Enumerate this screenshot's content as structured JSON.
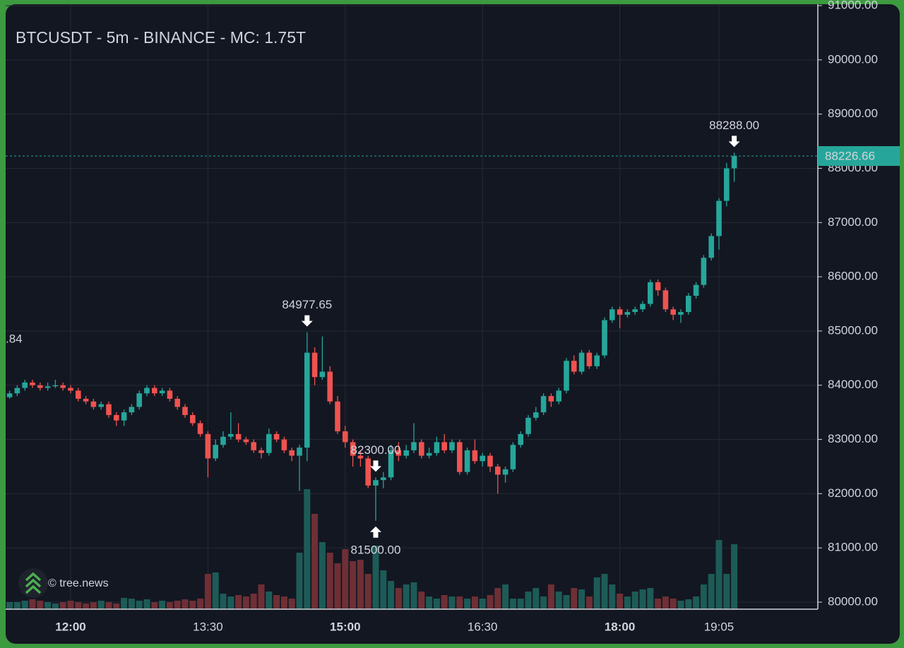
{
  "chart_data": {
    "type": "candlestick",
    "title": "BTCUSDT - 5m - BINANCE - MC: 1.75T",
    "watermark": "© tree.news",
    "side_label": ".84",
    "categories": [
      null,
      null,
      null,
      null,
      null,
      null,
      null,
      null,
      "12:00",
      null,
      null,
      null,
      null,
      null,
      null,
      null,
      null,
      null,
      null,
      null,
      null,
      null,
      null,
      null,
      null,
      null,
      "13:30",
      null,
      null,
      null,
      null,
      null,
      null,
      null,
      null,
      null,
      null,
      null,
      null,
      null,
      null,
      null,
      null,
      null,
      "15:00",
      null,
      null,
      null,
      null,
      null,
      null,
      null,
      null,
      null,
      null,
      null,
      null,
      null,
      null,
      null,
      null,
      null,
      "16:30",
      null,
      null,
      null,
      null,
      null,
      null,
      null,
      null,
      null,
      null,
      null,
      null,
      null,
      null,
      null,
      null,
      null,
      "18:00",
      null,
      null,
      null,
      null,
      null,
      null,
      null,
      null,
      null,
      null,
      null,
      null,
      "19:05",
      null,
      null
    ],
    "ohlc": [
      [
        83780,
        83900,
        83750,
        83850
      ],
      [
        83850,
        84000,
        83800,
        83950
      ],
      [
        83950,
        84100,
        83900,
        84050
      ],
      [
        84050,
        84100,
        83950,
        84000
      ],
      [
        84000,
        84050,
        83900,
        83950
      ],
      [
        83950,
        84050,
        83900,
        83980
      ],
      [
        83980,
        84100,
        83950,
        84000
      ],
      [
        84000,
        84050,
        83900,
        83950
      ],
      [
        83950,
        84000,
        83850,
        83900
      ],
      [
        83900,
        83950,
        83700,
        83750
      ],
      [
        83750,
        83800,
        83650,
        83700
      ],
      [
        83700,
        83750,
        83550,
        83600
      ],
      [
        83600,
        83700,
        83550,
        83650
      ],
      [
        83650,
        83700,
        83400,
        83450
      ],
      [
        83450,
        83500,
        83250,
        83350
      ],
      [
        83350,
        83550,
        83250,
        83500
      ],
      [
        83500,
        83650,
        83450,
        83600
      ],
      [
        83600,
        83900,
        83550,
        83850
      ],
      [
        83850,
        84000,
        83800,
        83950
      ],
      [
        83950,
        84000,
        83800,
        83850
      ],
      [
        83850,
        83950,
        83800,
        83900
      ],
      [
        83900,
        83950,
        83700,
        83750
      ],
      [
        83750,
        83800,
        83550,
        83600
      ],
      [
        83600,
        83650,
        83400,
        83450
      ],
      [
        83450,
        83500,
        83250,
        83300
      ],
      [
        83300,
        83350,
        83050,
        83100
      ],
      [
        83100,
        83150,
        82300,
        82650
      ],
      [
        82650,
        83000,
        82600,
        82900
      ],
      [
        82900,
        83150,
        82850,
        83050
      ],
      [
        83050,
        83500,
        83000,
        83100
      ],
      [
        83100,
        83300,
        82950,
        83000
      ],
      [
        83000,
        83050,
        82900,
        82950
      ],
      [
        82950,
        83000,
        82750,
        82800
      ],
      [
        82800,
        82850,
        82650,
        82750
      ],
      [
        82750,
        83200,
        82700,
        83100
      ],
      [
        83100,
        83150,
        82950,
        83000
      ],
      [
        83000,
        83050,
        82750,
        82800
      ],
      [
        82800,
        82850,
        82600,
        82700
      ],
      [
        82700,
        82900,
        82050,
        82850
      ],
      [
        82850,
        84977.65,
        82600,
        84600
      ],
      [
        84600,
        84700,
        84000,
        84150
      ],
      [
        84150,
        84900,
        84100,
        84250
      ],
      [
        84250,
        84350,
        83650,
        83700
      ],
      [
        83700,
        83800,
        83100,
        83150
      ],
      [
        83150,
        83250,
        82850,
        82950
      ],
      [
        82950,
        83000,
        82500,
        82700
      ],
      [
        82700,
        82800,
        82500,
        82650
      ],
      [
        82650,
        82700,
        82100,
        82150
      ],
      [
        82150,
        82300,
        81500,
        82250
      ],
      [
        82250,
        82400,
        82100,
        82300
      ],
      [
        82300,
        82900,
        82250,
        82800
      ],
      [
        82800,
        82950,
        82600,
        82700
      ],
      [
        82700,
        82900,
        82650,
        82800
      ],
      [
        82800,
        83300,
        82750,
        82950
      ],
      [
        82950,
        83000,
        82650,
        82700
      ],
      [
        82700,
        82850,
        82650,
        82750
      ],
      [
        82750,
        83050,
        82700,
        82950
      ],
      [
        82950,
        83100,
        82750,
        82800
      ],
      [
        82800,
        83000,
        82750,
        82950
      ],
      [
        82950,
        83000,
        82350,
        82400
      ],
      [
        82400,
        82850,
        82350,
        82800
      ],
      [
        82800,
        83000,
        82550,
        82600
      ],
      [
        82600,
        82750,
        82500,
        82700
      ],
      [
        82700,
        82750,
        82400,
        82500
      ],
      [
        82500,
        82550,
        82000,
        82350
      ],
      [
        82350,
        82500,
        82200,
        82450
      ],
      [
        82450,
        82950,
        82400,
        82900
      ],
      [
        82900,
        83150,
        82850,
        83100
      ],
      [
        83100,
        83450,
        83050,
        83400
      ],
      [
        83400,
        83600,
        83350,
        83500
      ],
      [
        83500,
        83850,
        83450,
        83800
      ],
      [
        83800,
        83850,
        83600,
        83700
      ],
      [
        83700,
        83950,
        83650,
        83900
      ],
      [
        83900,
        84500,
        83850,
        84450
      ],
      [
        84450,
        84550,
        84200,
        84250
      ],
      [
        84250,
        84650,
        84200,
        84600
      ],
      [
        84600,
        84650,
        84300,
        84350
      ],
      [
        84350,
        84600,
        84300,
        84550
      ],
      [
        84550,
        85250,
        84500,
        85200
      ],
      [
        85200,
        85450,
        85150,
        85400
      ],
      [
        85400,
        85450,
        85050,
        85300
      ],
      [
        85300,
        85400,
        85250,
        85350
      ],
      [
        85350,
        85450,
        85300,
        85400
      ],
      [
        85400,
        85550,
        85350,
        85500
      ],
      [
        85500,
        85950,
        85450,
        85900
      ],
      [
        85900,
        85950,
        85650,
        85750
      ],
      [
        85750,
        85800,
        85350,
        85400
      ],
      [
        85400,
        85450,
        85200,
        85300
      ],
      [
        85300,
        85400,
        85150,
        85350
      ],
      [
        85350,
        85700,
        85300,
        85650
      ],
      [
        85650,
        85900,
        85600,
        85850
      ],
      [
        85850,
        86400,
        85800,
        86350
      ],
      [
        86350,
        86800,
        86300,
        86750
      ],
      [
        86750,
        87450,
        86500,
        87400
      ],
      [
        87400,
        88100,
        87300,
        88000
      ],
      [
        88000,
        88288,
        87750,
        88226.66
      ]
    ],
    "volume": [
      10,
      10,
      12,
      14,
      12,
      10,
      8,
      10,
      12,
      10,
      8,
      10,
      12,
      10,
      8,
      16,
      15,
      12,
      14,
      10,
      12,
      10,
      12,
      14,
      12,
      15,
      50,
      52,
      22,
      18,
      20,
      18,
      22,
      35,
      25,
      20,
      18,
      15,
      80,
      170,
      135,
      95,
      80,
      65,
      85,
      68,
      70,
      50,
      90,
      55,
      40,
      30,
      35,
      38,
      25,
      18,
      15,
      20,
      18,
      18,
      15,
      18,
      15,
      20,
      30,
      35,
      15,
      15,
      25,
      30,
      18,
      35,
      25,
      20,
      30,
      28,
      18,
      45,
      50,
      35,
      22,
      18,
      25,
      28,
      30,
      15,
      18,
      15,
      12,
      14,
      18,
      35,
      50,
      98,
      50,
      92
    ],
    "up_color": "#26a69a",
    "down_color": "#ef5350",
    "volume_up_color": "#1d5b57",
    "volume_down_color": "#6e2f35",
    "ylim": [
      80000,
      91000
    ],
    "yticks": [
      {
        "value": 80000,
        "label": "80000.00"
      },
      {
        "value": 81000,
        "label": "81000.00"
      },
      {
        "value": 82000,
        "label": "82000.00"
      },
      {
        "value": 83000,
        "label": "83000.00"
      },
      {
        "value": 84000,
        "label": "84000.00"
      },
      {
        "value": 85000,
        "label": "85000.00"
      },
      {
        "value": 86000,
        "label": "86000.00"
      },
      {
        "value": 87000,
        "label": "87000.00"
      },
      {
        "value": 88000,
        "label": "88000.00"
      },
      {
        "value": 89000,
        "label": "89000.00"
      },
      {
        "value": 90000,
        "label": "90000.00"
      },
      {
        "value": 91000,
        "label": "91000.00"
      }
    ],
    "annotations": [
      {
        "value": 88288,
        "label": "88288.00"
      },
      {
        "value": 84977.65,
        "label": "84977.65"
      },
      {
        "value": 82300,
        "label": "82300.00"
      },
      {
        "value": 81500,
        "label": "81500.00"
      }
    ],
    "grid": true
  }
}
